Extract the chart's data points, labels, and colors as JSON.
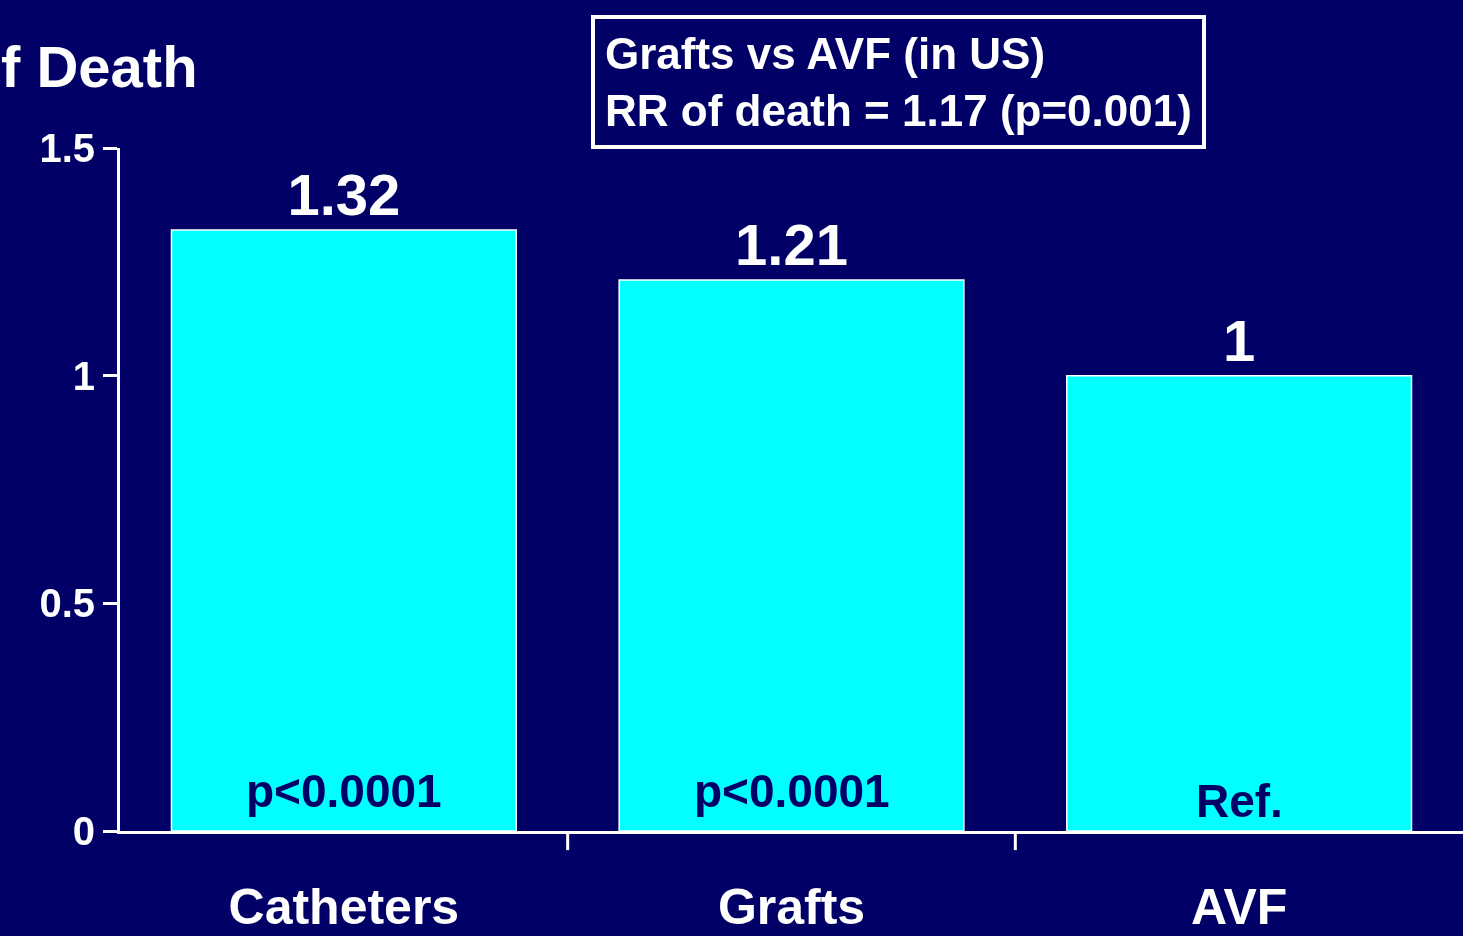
{
  "chart_data": {
    "type": "bar",
    "title": "f Death",
    "categories": [
      "Catheters",
      "Grafts",
      "AVF"
    ],
    "values": [
      1.32,
      1.21,
      1
    ],
    "color": "#00ffff",
    "data_labels": true,
    "ylim": [
      0,
      1.5
    ],
    "yticks": [
      0,
      0.5,
      1,
      1.5
    ],
    "annotations": [
      "Grafts vs AVF (in US)\nRR of death = 1.17 (p=0.001)",
      "p<0.0001",
      "p<0.0001",
      "Ref."
    ]
  }
}
